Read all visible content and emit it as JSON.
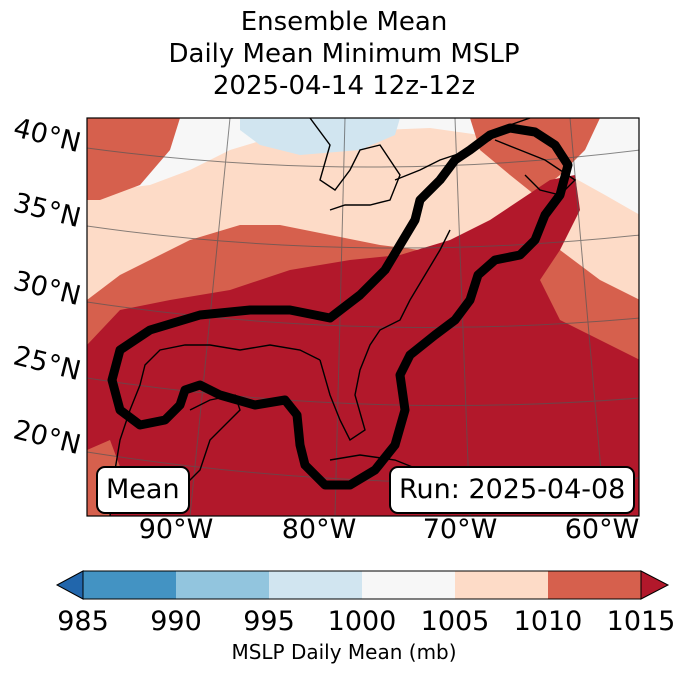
{
  "title": {
    "line1": "Ensemble Mean",
    "line2": "Daily Mean Minimum MSLP",
    "line3": "2025-04-14 12z-12z"
  },
  "map": {
    "lat_labels": [
      "40°N",
      "35°N",
      "30°N",
      "25°N",
      "20°N"
    ],
    "lon_labels": [
      "90°W",
      "80°W",
      "70°W",
      "60°W"
    ],
    "mean_label": "Mean",
    "run_label": "Run: 2025-04-08"
  },
  "colorbar": {
    "title": "MSLP Daily Mean (mb)",
    "ticks": [
      "985",
      "990",
      "995",
      "1000",
      "1005",
      "1010",
      "1015"
    ],
    "colors": [
      "#4393c3",
      "#92c5de",
      "#d1e5f0",
      "#f7f7f7",
      "#fddbc7",
      "#d6604d",
      "#b2182b",
      "#2166ac"
    ],
    "under_color": "#2166ac",
    "over_color": "#b2182b"
  }
}
